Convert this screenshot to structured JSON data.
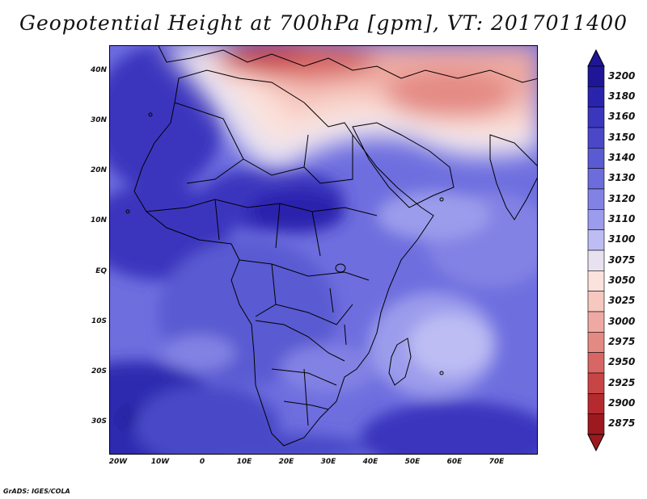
{
  "title": "Geopotential Height at 700hPa [gpm], VT: 2017011400",
  "credit": "GrADS: IGES/COLA",
  "lat_labels": [
    "40N",
    "30N",
    "20N",
    "10N",
    "EQ",
    "10S",
    "20S",
    "30S"
  ],
  "lon_labels": [
    "20W",
    "10W",
    "0",
    "10E",
    "20E",
    "30E",
    "40E",
    "50E",
    "60E",
    "70E"
  ],
  "colorbar": {
    "levels": [
      "3200",
      "3180",
      "3160",
      "3150",
      "3140",
      "3130",
      "3120",
      "3110",
      "3100",
      "3075",
      "3050",
      "3025",
      "3000",
      "2975",
      "2950",
      "2925",
      "2900",
      "2875"
    ],
    "colors": [
      "#1e1696",
      "#2a24ad",
      "#3a36be",
      "#4a48c8",
      "#5a5ad2",
      "#6c6cdc",
      "#8282e4",
      "#9c9cec",
      "#bdbdf4",
      "#e8e2f0",
      "#fbe2dc",
      "#f6c8c0",
      "#eeaaa2",
      "#e48a84",
      "#d86664",
      "#c84546",
      "#b52a2e",
      "#9c1a1f"
    ]
  },
  "map": {
    "region": "Africa, Arabian Peninsula and western Indian Ocean",
    "extent_lon": [
      -22,
      80
    ],
    "extent_lat": [
      -37,
      45
    ],
    "field": "Geopotential Height at 700hPa",
    "units": "gpm",
    "valid_time": "2017011400"
  }
}
